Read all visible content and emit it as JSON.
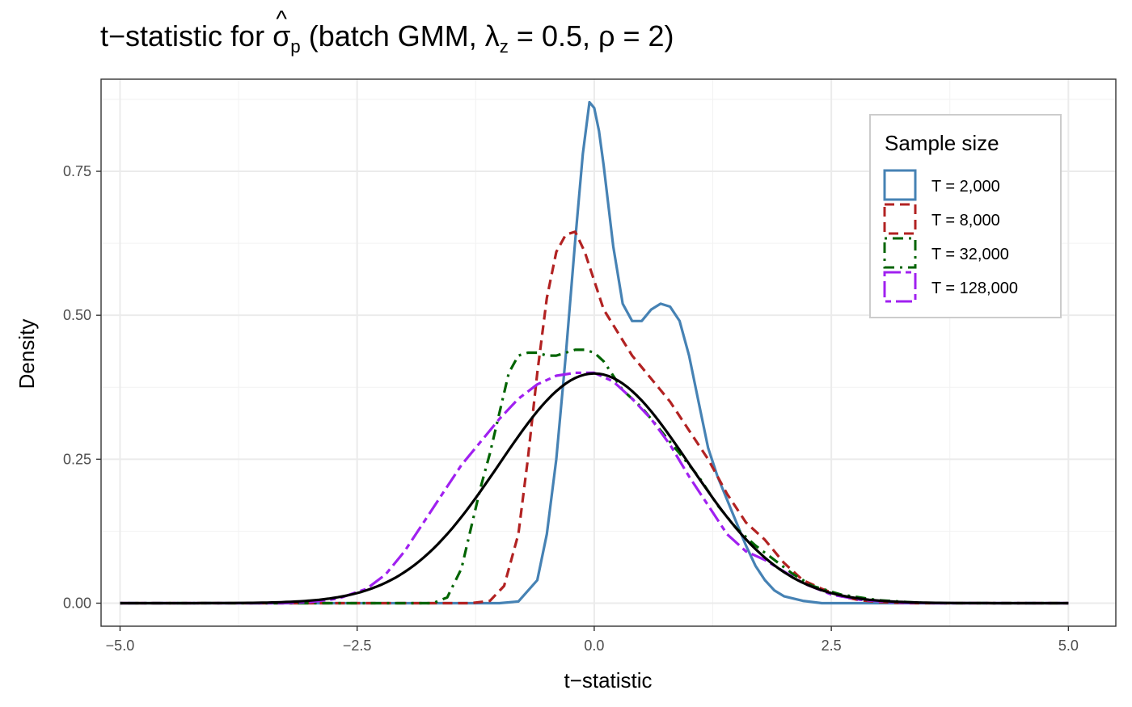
{
  "title": {
    "prefix": "t−statistic for ",
    "sigma": "σ",
    "sigma_sub": "p",
    "middle": " (batch GMM, λ",
    "lambda_sub": "z",
    "suffix": " = 0.5, ρ = 2)"
  },
  "chart_data": {
    "type": "line",
    "title": "t−statistic for σ̂p (batch GMM, λz = 0.5, ρ = 2)",
    "xlabel": "t−statistic",
    "ylabel": "Density",
    "xlim": [
      -5.2,
      5.5
    ],
    "ylim": [
      -0.04,
      0.91
    ],
    "x_ticks": [
      -5.0,
      -2.5,
      0.0,
      2.5,
      5.0
    ],
    "x_tick_labels": [
      "−5.0",
      "−2.5",
      "0.0",
      "2.5",
      "5.0"
    ],
    "y_ticks": [
      0.0,
      0.25,
      0.5,
      0.75
    ],
    "y_tick_labels": [
      "0.00",
      "0.25",
      "0.50",
      "0.75"
    ],
    "grid": true,
    "legend": {
      "title": "Sample size",
      "placement": "top-right",
      "entries": [
        "T = 2,000",
        "T = 8,000",
        "T = 32,000",
        "T = 128,000"
      ]
    },
    "series": [
      {
        "name": "T = 2,000",
        "color": "#4682B4",
        "dash": "solid",
        "points": [
          [
            -5.0,
            0.0
          ],
          [
            -1.0,
            0.0
          ],
          [
            -0.8,
            0.003
          ],
          [
            -0.6,
            0.04
          ],
          [
            -0.5,
            0.12
          ],
          [
            -0.4,
            0.25
          ],
          [
            -0.3,
            0.43
          ],
          [
            -0.2,
            0.63
          ],
          [
            -0.12,
            0.78
          ],
          [
            -0.05,
            0.87
          ],
          [
            0.0,
            0.86
          ],
          [
            0.05,
            0.82
          ],
          [
            0.1,
            0.76
          ],
          [
            0.2,
            0.62
          ],
          [
            0.3,
            0.52
          ],
          [
            0.4,
            0.49
          ],
          [
            0.5,
            0.49
          ],
          [
            0.6,
            0.51
          ],
          [
            0.7,
            0.52
          ],
          [
            0.8,
            0.515
          ],
          [
            0.9,
            0.49
          ],
          [
            1.0,
            0.43
          ],
          [
            1.1,
            0.35
          ],
          [
            1.2,
            0.27
          ],
          [
            1.3,
            0.22
          ],
          [
            1.4,
            0.18
          ],
          [
            1.5,
            0.14
          ],
          [
            1.6,
            0.1
          ],
          [
            1.7,
            0.065
          ],
          [
            1.8,
            0.04
          ],
          [
            1.9,
            0.022
          ],
          [
            2.0,
            0.012
          ],
          [
            2.2,
            0.004
          ],
          [
            2.4,
            0.0
          ],
          [
            5.0,
            0.0
          ]
        ]
      },
      {
        "name": "T = 8,000",
        "color": "#B22222",
        "dash": "dashed",
        "points": [
          [
            -5.0,
            0.0
          ],
          [
            -1.3,
            0.0
          ],
          [
            -1.1,
            0.004
          ],
          [
            -0.95,
            0.03
          ],
          [
            -0.8,
            0.12
          ],
          [
            -0.7,
            0.25
          ],
          [
            -0.6,
            0.4
          ],
          [
            -0.5,
            0.53
          ],
          [
            -0.4,
            0.61
          ],
          [
            -0.3,
            0.64
          ],
          [
            -0.2,
            0.645
          ],
          [
            -0.1,
            0.61
          ],
          [
            0.0,
            0.56
          ],
          [
            0.1,
            0.51
          ],
          [
            0.25,
            0.47
          ],
          [
            0.4,
            0.43
          ],
          [
            0.6,
            0.39
          ],
          [
            0.8,
            0.35
          ],
          [
            1.0,
            0.3
          ],
          [
            1.2,
            0.25
          ],
          [
            1.4,
            0.19
          ],
          [
            1.6,
            0.14
          ],
          [
            1.8,
            0.11
          ],
          [
            2.0,
            0.07
          ],
          [
            2.2,
            0.04
          ],
          [
            2.4,
            0.025
          ],
          [
            2.6,
            0.012
          ],
          [
            2.8,
            0.005
          ],
          [
            3.0,
            0.002
          ],
          [
            3.3,
            0.0
          ],
          [
            5.0,
            0.0
          ]
        ]
      },
      {
        "name": "T = 32,000",
        "color": "#006400",
        "dash": "dotdash",
        "points": [
          [
            -5.0,
            0.0
          ],
          [
            -1.7,
            0.0
          ],
          [
            -1.55,
            0.01
          ],
          [
            -1.4,
            0.06
          ],
          [
            -1.3,
            0.13
          ],
          [
            -1.2,
            0.2
          ],
          [
            -1.1,
            0.26
          ],
          [
            -1.0,
            0.33
          ],
          [
            -0.9,
            0.4
          ],
          [
            -0.8,
            0.43
          ],
          [
            -0.7,
            0.435
          ],
          [
            -0.6,
            0.435
          ],
          [
            -0.5,
            0.43
          ],
          [
            -0.4,
            0.43
          ],
          [
            -0.3,
            0.435
          ],
          [
            -0.2,
            0.44
          ],
          [
            -0.1,
            0.44
          ],
          [
            0.0,
            0.435
          ],
          [
            0.1,
            0.42
          ],
          [
            0.2,
            0.395
          ],
          [
            0.3,
            0.37
          ],
          [
            0.5,
            0.34
          ],
          [
            0.7,
            0.3
          ],
          [
            0.9,
            0.26
          ],
          [
            1.1,
            0.22
          ],
          [
            1.3,
            0.17
          ],
          [
            1.5,
            0.13
          ],
          [
            1.7,
            0.1
          ],
          [
            1.9,
            0.075
          ],
          [
            2.1,
            0.05
          ],
          [
            2.3,
            0.03
          ],
          [
            2.6,
            0.015
          ],
          [
            3.0,
            0.005
          ],
          [
            3.4,
            0.001
          ],
          [
            3.7,
            0.0
          ],
          [
            5.0,
            0.0
          ]
        ]
      },
      {
        "name": "T = 128,000",
        "color": "#A020F0",
        "dash": "twodash",
        "points": [
          [
            -5.0,
            0.0
          ],
          [
            -3.3,
            0.0
          ],
          [
            -3.0,
            0.002
          ],
          [
            -2.7,
            0.008
          ],
          [
            -2.4,
            0.025
          ],
          [
            -2.2,
            0.05
          ],
          [
            -2.0,
            0.09
          ],
          [
            -1.8,
            0.14
          ],
          [
            -1.6,
            0.19
          ],
          [
            -1.4,
            0.24
          ],
          [
            -1.2,
            0.28
          ],
          [
            -1.0,
            0.32
          ],
          [
            -0.8,
            0.355
          ],
          [
            -0.6,
            0.38
          ],
          [
            -0.4,
            0.395
          ],
          [
            -0.2,
            0.4
          ],
          [
            0.0,
            0.4
          ],
          [
            0.2,
            0.385
          ],
          [
            0.4,
            0.355
          ],
          [
            0.6,
            0.32
          ],
          [
            0.8,
            0.275
          ],
          [
            1.0,
            0.22
          ],
          [
            1.2,
            0.17
          ],
          [
            1.4,
            0.12
          ],
          [
            1.6,
            0.09
          ],
          [
            1.8,
            0.075
          ],
          [
            2.0,
            0.055
          ],
          [
            2.2,
            0.035
          ],
          [
            2.5,
            0.015
          ],
          [
            2.8,
            0.006
          ],
          [
            3.2,
            0.001
          ],
          [
            3.6,
            0.0
          ],
          [
            5.0,
            0.0
          ]
        ]
      },
      {
        "name": "",
        "color": "#000000",
        "dash": "solid",
        "function": "normal_pdf",
        "range": [
          -5.0,
          5.0
        ]
      }
    ]
  }
}
